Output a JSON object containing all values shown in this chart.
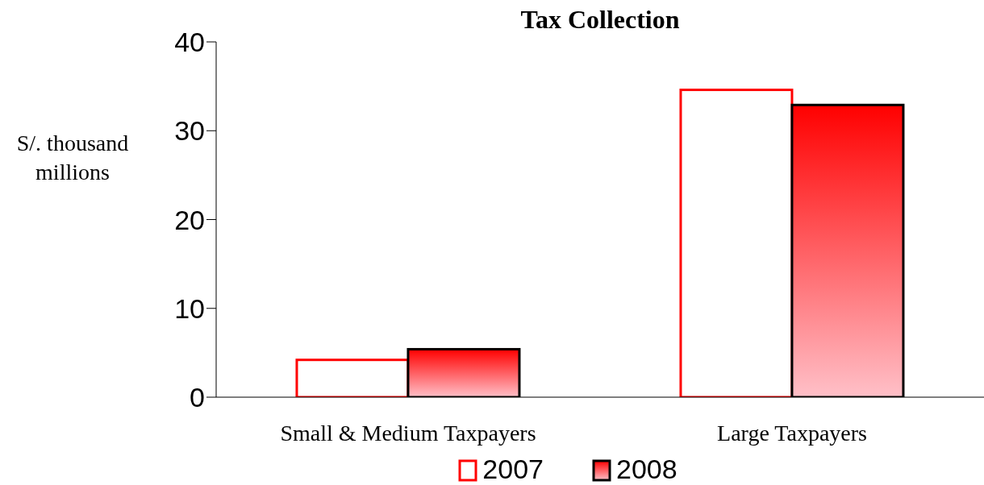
{
  "chart_data": {
    "type": "bar",
    "title": "Tax Collection",
    "ylabel": "S/. thousand millions",
    "categories": [
      "Small & Medium Taxpayers",
      "Large Taxpayers"
    ],
    "series": [
      {
        "name": "2007",
        "color": "#ff0000",
        "values": [
          4.2,
          34.6
        ]
      },
      {
        "name": "2008",
        "color": "#ff0000",
        "values": [
          5.4,
          32.9
        ]
      }
    ],
    "ylim": [
      0,
      40
    ],
    "yticks": [
      0,
      10,
      20,
      30,
      40
    ],
    "grid": false,
    "legend": "bottom"
  }
}
